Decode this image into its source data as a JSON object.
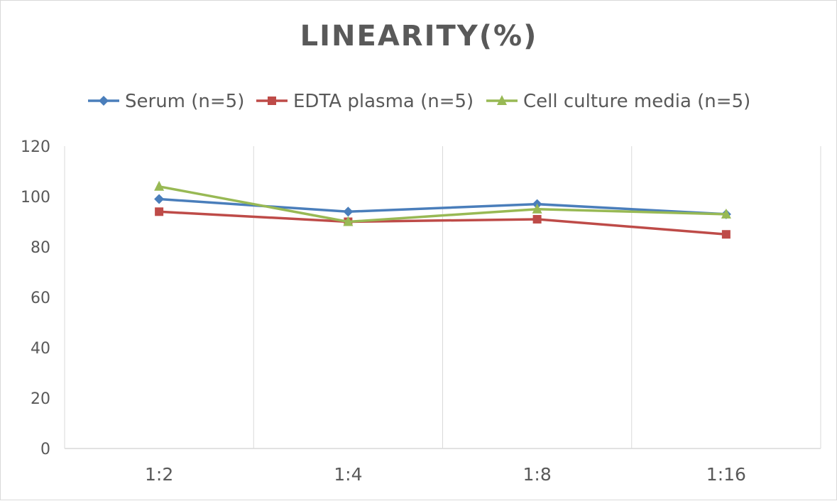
{
  "chart_data": {
    "type": "line",
    "title": "LINEARITY(%)",
    "categories": [
      "1:2",
      "1:4",
      "1:8",
      "1:16"
    ],
    "series": [
      {
        "name": "Serum (n=5)",
        "values": [
          99,
          94,
          97,
          93
        ],
        "color": "#4a7ebb",
        "marker": "diamond"
      },
      {
        "name": "EDTA plasma (n=5)",
        "values": [
          94,
          90,
          91,
          85
        ],
        "color": "#be4b48",
        "marker": "square"
      },
      {
        "name": "Cell culture media (n=5)",
        "values": [
          104,
          90,
          95,
          93
        ],
        "color": "#98b954",
        "marker": "triangle"
      }
    ],
    "ylim": [
      0,
      120
    ],
    "yticks": [
      "0",
      "20",
      "40",
      "60",
      "80",
      "100",
      "120"
    ],
    "xlabel": "",
    "ylabel": "",
    "grid": "vertical",
    "legend": "top"
  }
}
